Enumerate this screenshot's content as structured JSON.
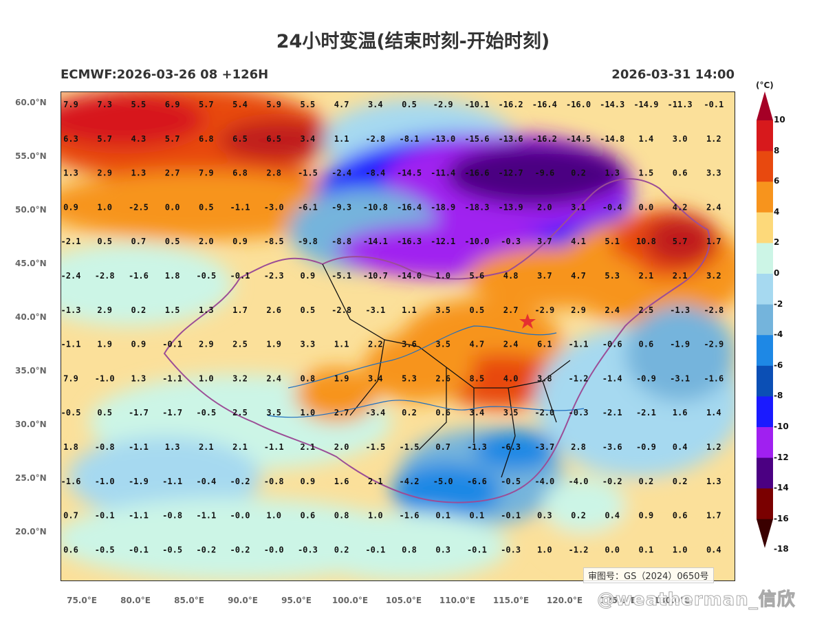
{
  "title": "24小时变温(结束时刻-开始时刻)",
  "model_run": "ECMWF:2026-03-26 08 +126H",
  "valid_time": "2026-03-31 14:00",
  "unit": "(°C)",
  "lat_ticks": [
    "60.0°N",
    "55.0°N",
    "50.0°N",
    "45.0°N",
    "40.0°N",
    "35.0°N",
    "30.0°N",
    "25.0°N",
    "20.0°N"
  ],
  "lon_ticks": [
    "75.0°E",
    "80.0°E",
    "85.0°E",
    "90.0°E",
    "95.0°E",
    "100.0°E",
    "105.0°E",
    "110.0°E",
    "115.0°E",
    "120.0°E",
    "125.0°E",
    "130.0°E"
  ],
  "colorbar": {
    "labels": [
      "10",
      "8",
      "6",
      "4",
      "2",
      "0",
      "-2",
      "-4",
      "-6",
      "-8",
      "-10",
      "-12",
      "-14",
      "-16",
      "-18"
    ],
    "colors": [
      "#a50026",
      "#d7191c",
      "#e8490f",
      "#f7941d",
      "#fdd97a",
      "#ccf5e6",
      "#a6d9f0",
      "#74b4dc",
      "#1e88e5",
      "#0b4fb5",
      "#1a1aff",
      "#a020f0",
      "#4b0082",
      "#7a0000",
      "#3a0000"
    ]
  },
  "grid_values": [
    [
      "7.9",
      "7.3",
      "5.5",
      "6.9",
      "5.7",
      "5.4",
      "5.9",
      "5.5",
      "4.7",
      "3.4",
      "0.5",
      "-2.9",
      "-10.1",
      "-16.2",
      "-16.4",
      "-16.0",
      "-14.3",
      "-14.9",
      "-11.3",
      "-0.1"
    ],
    [
      "6.3",
      "5.7",
      "4.3",
      "5.7",
      "6.8",
      "6.5",
      "6.5",
      "3.4",
      "1.1",
      "-2.8",
      "-8.1",
      "-13.0",
      "-15.6",
      "-13.6",
      "-16.2",
      "-14.5",
      "-14.8",
      "1.4",
      "3.0",
      "1.2"
    ],
    [
      "1.3",
      "2.9",
      "1.3",
      "2.7",
      "7.9",
      "6.8",
      "2.8",
      "-1.5",
      "-2.4",
      "-8.4",
      "-14.5",
      "-11.4",
      "-16.6",
      "-12.7",
      "-9.6",
      "0.2",
      "1.3",
      "1.5",
      "0.6",
      "3.3"
    ],
    [
      "0.9",
      "1.0",
      "-2.5",
      "0.0",
      "0.5",
      "-1.1",
      "-3.0",
      "-6.1",
      "-9.3",
      "-10.8",
      "-16.4",
      "-18.9",
      "-18.3",
      "-13.9",
      "2.0",
      "3.1",
      "-0.4",
      "0.0",
      "4.2",
      "2.4"
    ],
    [
      "-2.1",
      "0.5",
      "0.7",
      "0.5",
      "2.0",
      "0.9",
      "-8.5",
      "-9.8",
      "-8.8",
      "-14.1",
      "-16.3",
      "-12.1",
      "-10.0",
      "-0.3",
      "3.7",
      "4.1",
      "5.1",
      "10.8",
      "5.7",
      "1.7"
    ],
    [
      "-2.4",
      "-2.8",
      "-1.6",
      "1.8",
      "-0.5",
      "-0.1",
      "-2.3",
      "0.9",
      "-5.1",
      "-10.7",
      "-14.0",
      "1.0",
      "5.6",
      "4.8",
      "3.7",
      "4.7",
      "5.3",
      "2.1",
      "2.1",
      "3.2"
    ],
    [
      "-1.3",
      "2.9",
      "0.2",
      "1.5",
      "1.3",
      "1.7",
      "2.6",
      "0.5",
      "-2.8",
      "-3.1",
      "1.1",
      "3.5",
      "0.5",
      "2.7",
      "-2.9",
      "2.9",
      "2.4",
      "2.5",
      "-1.3",
      "-2.8"
    ],
    [
      "-1.1",
      "1.9",
      "0.9",
      "-0.1",
      "2.9",
      "2.5",
      "1.9",
      "3.3",
      "1.1",
      "2.2",
      "3.6",
      "3.5",
      "4.7",
      "2.4",
      "6.1",
      "-1.1",
      "-0.6",
      "0.6",
      "-1.9",
      "-2.9"
    ],
    [
      "7.9",
      "-1.0",
      "1.3",
      "-1.1",
      "1.0",
      "3.2",
      "2.4",
      "0.8",
      "1.9",
      "3.4",
      "5.3",
      "2.6",
      "8.5",
      "4.0",
      "3.8",
      "-1.2",
      "-1.4",
      "-0.9",
      "-3.1",
      "-1.6"
    ],
    [
      "-0.5",
      "0.5",
      "-1.7",
      "-1.7",
      "-0.5",
      "2.5",
      "3.5",
      "1.0",
      "2.7",
      "-3.4",
      "0.2",
      "0.6",
      "3.4",
      "3.5",
      "-2.0",
      "-0.3",
      "-2.1",
      "-2.1",
      "1.6",
      "1.4"
    ],
    [
      "1.8",
      "-0.8",
      "-1.1",
      "1.3",
      "2.1",
      "2.1",
      "-1.1",
      "2.1",
      "2.0",
      "-1.5",
      "-1.5",
      "0.7",
      "-1.3",
      "-6.3",
      "-3.7",
      "2.8",
      "-3.6",
      "-0.9",
      "0.4",
      "1.2"
    ],
    [
      "-1.6",
      "-1.0",
      "-1.9",
      "-1.1",
      "-0.4",
      "-0.2",
      "-0.8",
      "0.9",
      "1.6",
      "2.1",
      "-4.2",
      "-5.0",
      "-6.6",
      "-0.5",
      "-4.0",
      "-4.0",
      "-0.2",
      "0.2",
      "0.2",
      "1.3"
    ],
    [
      "0.7",
      "-0.1",
      "-1.1",
      "-0.8",
      "-1.1",
      "-0.0",
      "1.0",
      "0.6",
      "0.8",
      "1.0",
      "-1.6",
      "0.1",
      "0.1",
      "-0.1",
      "0.3",
      "0.2",
      "0.4",
      "0.9",
      "0.6",
      "1.7"
    ],
    [
      "0.6",
      "-0.5",
      "-0.1",
      "-0.5",
      "-0.2",
      "-0.2",
      "-0.0",
      "-0.3",
      "0.2",
      "-0.1",
      "0.8",
      "0.3",
      "-0.1",
      "-0.3",
      "1.0",
      "-1.2",
      "0.0",
      "0.1",
      "1.0",
      "0.4"
    ]
  ],
  "approval_number": "审图号：GS（2024）0650号",
  "watermark": "@weatherman_信欣"
}
